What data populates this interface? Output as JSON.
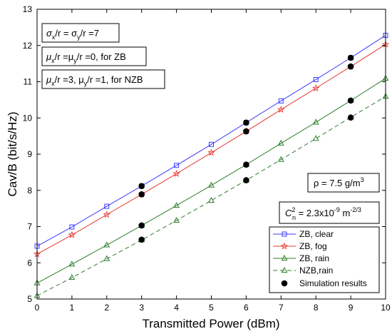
{
  "chart_data": {
    "type": "line",
    "xlabel": "Transmitted Power (dBm)",
    "ylabel": "Cav/B (bit/s/Hz)",
    "xlim": [
      0,
      10
    ],
    "ylim": [
      5,
      13
    ],
    "x_ticks": [
      0,
      1,
      2,
      3,
      4,
      5,
      6,
      7,
      8,
      9,
      10
    ],
    "y_ticks": [
      5,
      6,
      7,
      8,
      9,
      10,
      11,
      12,
      13
    ],
    "grid": false,
    "legend_position": "bottom-right",
    "x": [
      0,
      1,
      2,
      3,
      4,
      5,
      6,
      7,
      8,
      9,
      10
    ],
    "series": [
      {
        "name": "ZB, clear",
        "color": "#3b3bff",
        "marker": "square",
        "dash": "solid",
        "values": [
          6.46,
          6.99,
          7.56,
          8.12,
          8.69,
          9.27,
          9.87,
          10.47,
          11.06,
          11.66,
          12.28
        ]
      },
      {
        "name": "ZB, fog",
        "color": "#e8382f",
        "marker": "star",
        "dash": "solid",
        "values": [
          6.24,
          6.77,
          7.33,
          7.89,
          8.46,
          9.04,
          9.63,
          10.23,
          10.82,
          11.42,
          12.03
        ]
      },
      {
        "name": "ZB, rain",
        "color": "#2e7d2e",
        "marker": "triangle",
        "dash": "solid",
        "values": [
          5.44,
          5.96,
          6.49,
          7.03,
          7.58,
          8.14,
          8.71,
          9.3,
          9.88,
          10.48,
          11.09
        ]
      },
      {
        "name": "NZB,rain",
        "color": "#2e7d2e",
        "marker": "triangle",
        "dash": "dashed",
        "values": [
          5.09,
          5.59,
          6.11,
          6.63,
          7.17,
          7.72,
          8.28,
          8.85,
          9.43,
          10.02,
          10.59
        ]
      }
    ],
    "simulation": {
      "name": "Simulation results",
      "color": "#000000",
      "points": [
        {
          "x": 3,
          "y": 8.12
        },
        {
          "x": 3,
          "y": 7.89
        },
        {
          "x": 3,
          "y": 7.03
        },
        {
          "x": 3,
          "y": 6.64
        },
        {
          "x": 6,
          "y": 9.87
        },
        {
          "x": 6,
          "y": 9.63
        },
        {
          "x": 6,
          "y": 8.71
        },
        {
          "x": 6,
          "y": 8.28
        },
        {
          "x": 9,
          "y": 11.66
        },
        {
          "x": 9,
          "y": 11.42
        },
        {
          "x": 9,
          "y": 10.48
        },
        {
          "x": 9,
          "y": 10.01
        }
      ]
    },
    "annotations": {
      "sigma": {
        "a": "σ",
        "a_sub": "x",
        "b": "/r = σ",
        "b_sub": "y",
        "c": "/r =7"
      },
      "mu_zb": {
        "a": "μ",
        "a_sub": "x",
        "b": "/r =μ",
        "b_sub": "y",
        "c": "/r =0, for ZB"
      },
      "mu_nzb": {
        "a": "μ",
        "a_sub": "x",
        "b": "/r =3, μ",
        "b_sub": "y",
        "c": "/r =1, for NZB"
      },
      "rho": {
        "a": "ρ = 7.5 g/m",
        "sup": "3"
      },
      "cn2": {
        "a": "C",
        "sup": "2",
        "sub": "n",
        "b": " = 2.3x10",
        "b_sup": "-9",
        "c": " m",
        "c_sup": "-2/3"
      }
    }
  }
}
